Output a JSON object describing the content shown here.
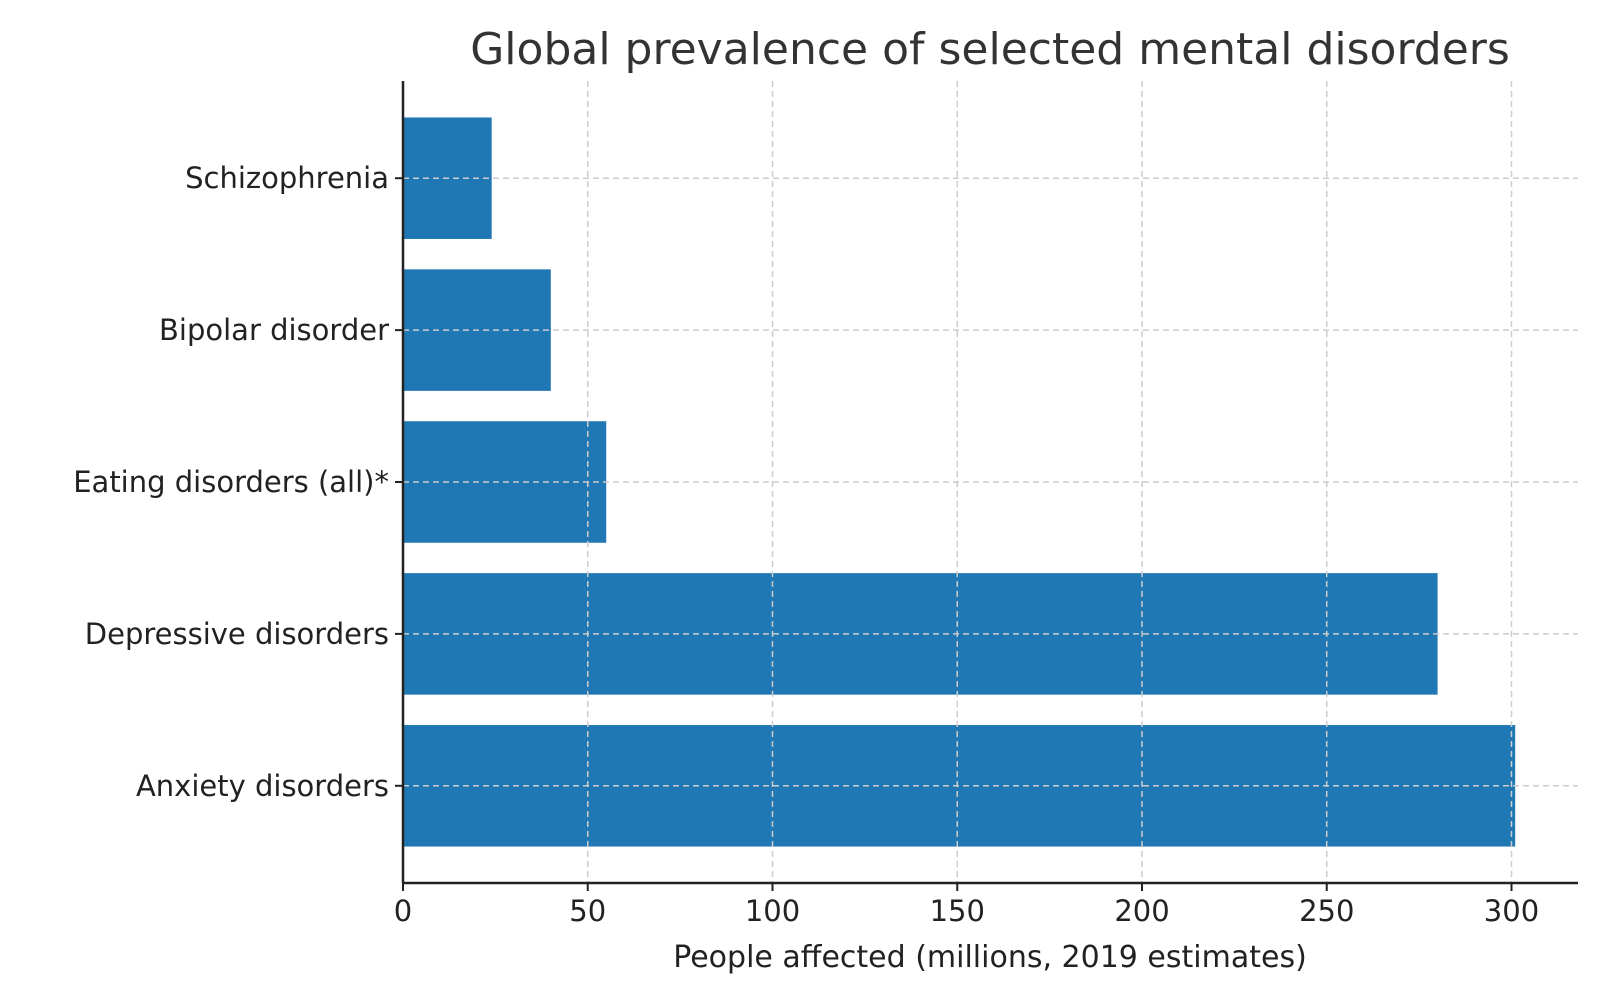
{
  "chart_data": {
    "type": "bar",
    "orientation": "horizontal",
    "title": "Global prevalence of selected mental disorders",
    "xlabel": "People affected (millions, 2019 estimates)",
    "ylabel": "",
    "categories": [
      "Anxiety disorders",
      "Depressive disorders",
      "Eating disorders (all)*",
      "Bipolar disorder",
      "Schizophrenia"
    ],
    "values": [
      301,
      280,
      55,
      40,
      24
    ],
    "xlim": [
      0,
      318
    ],
    "xticks": [
      0,
      50,
      100,
      150,
      200,
      250,
      300
    ],
    "grid": true,
    "bar_color": "#1f77b4"
  }
}
